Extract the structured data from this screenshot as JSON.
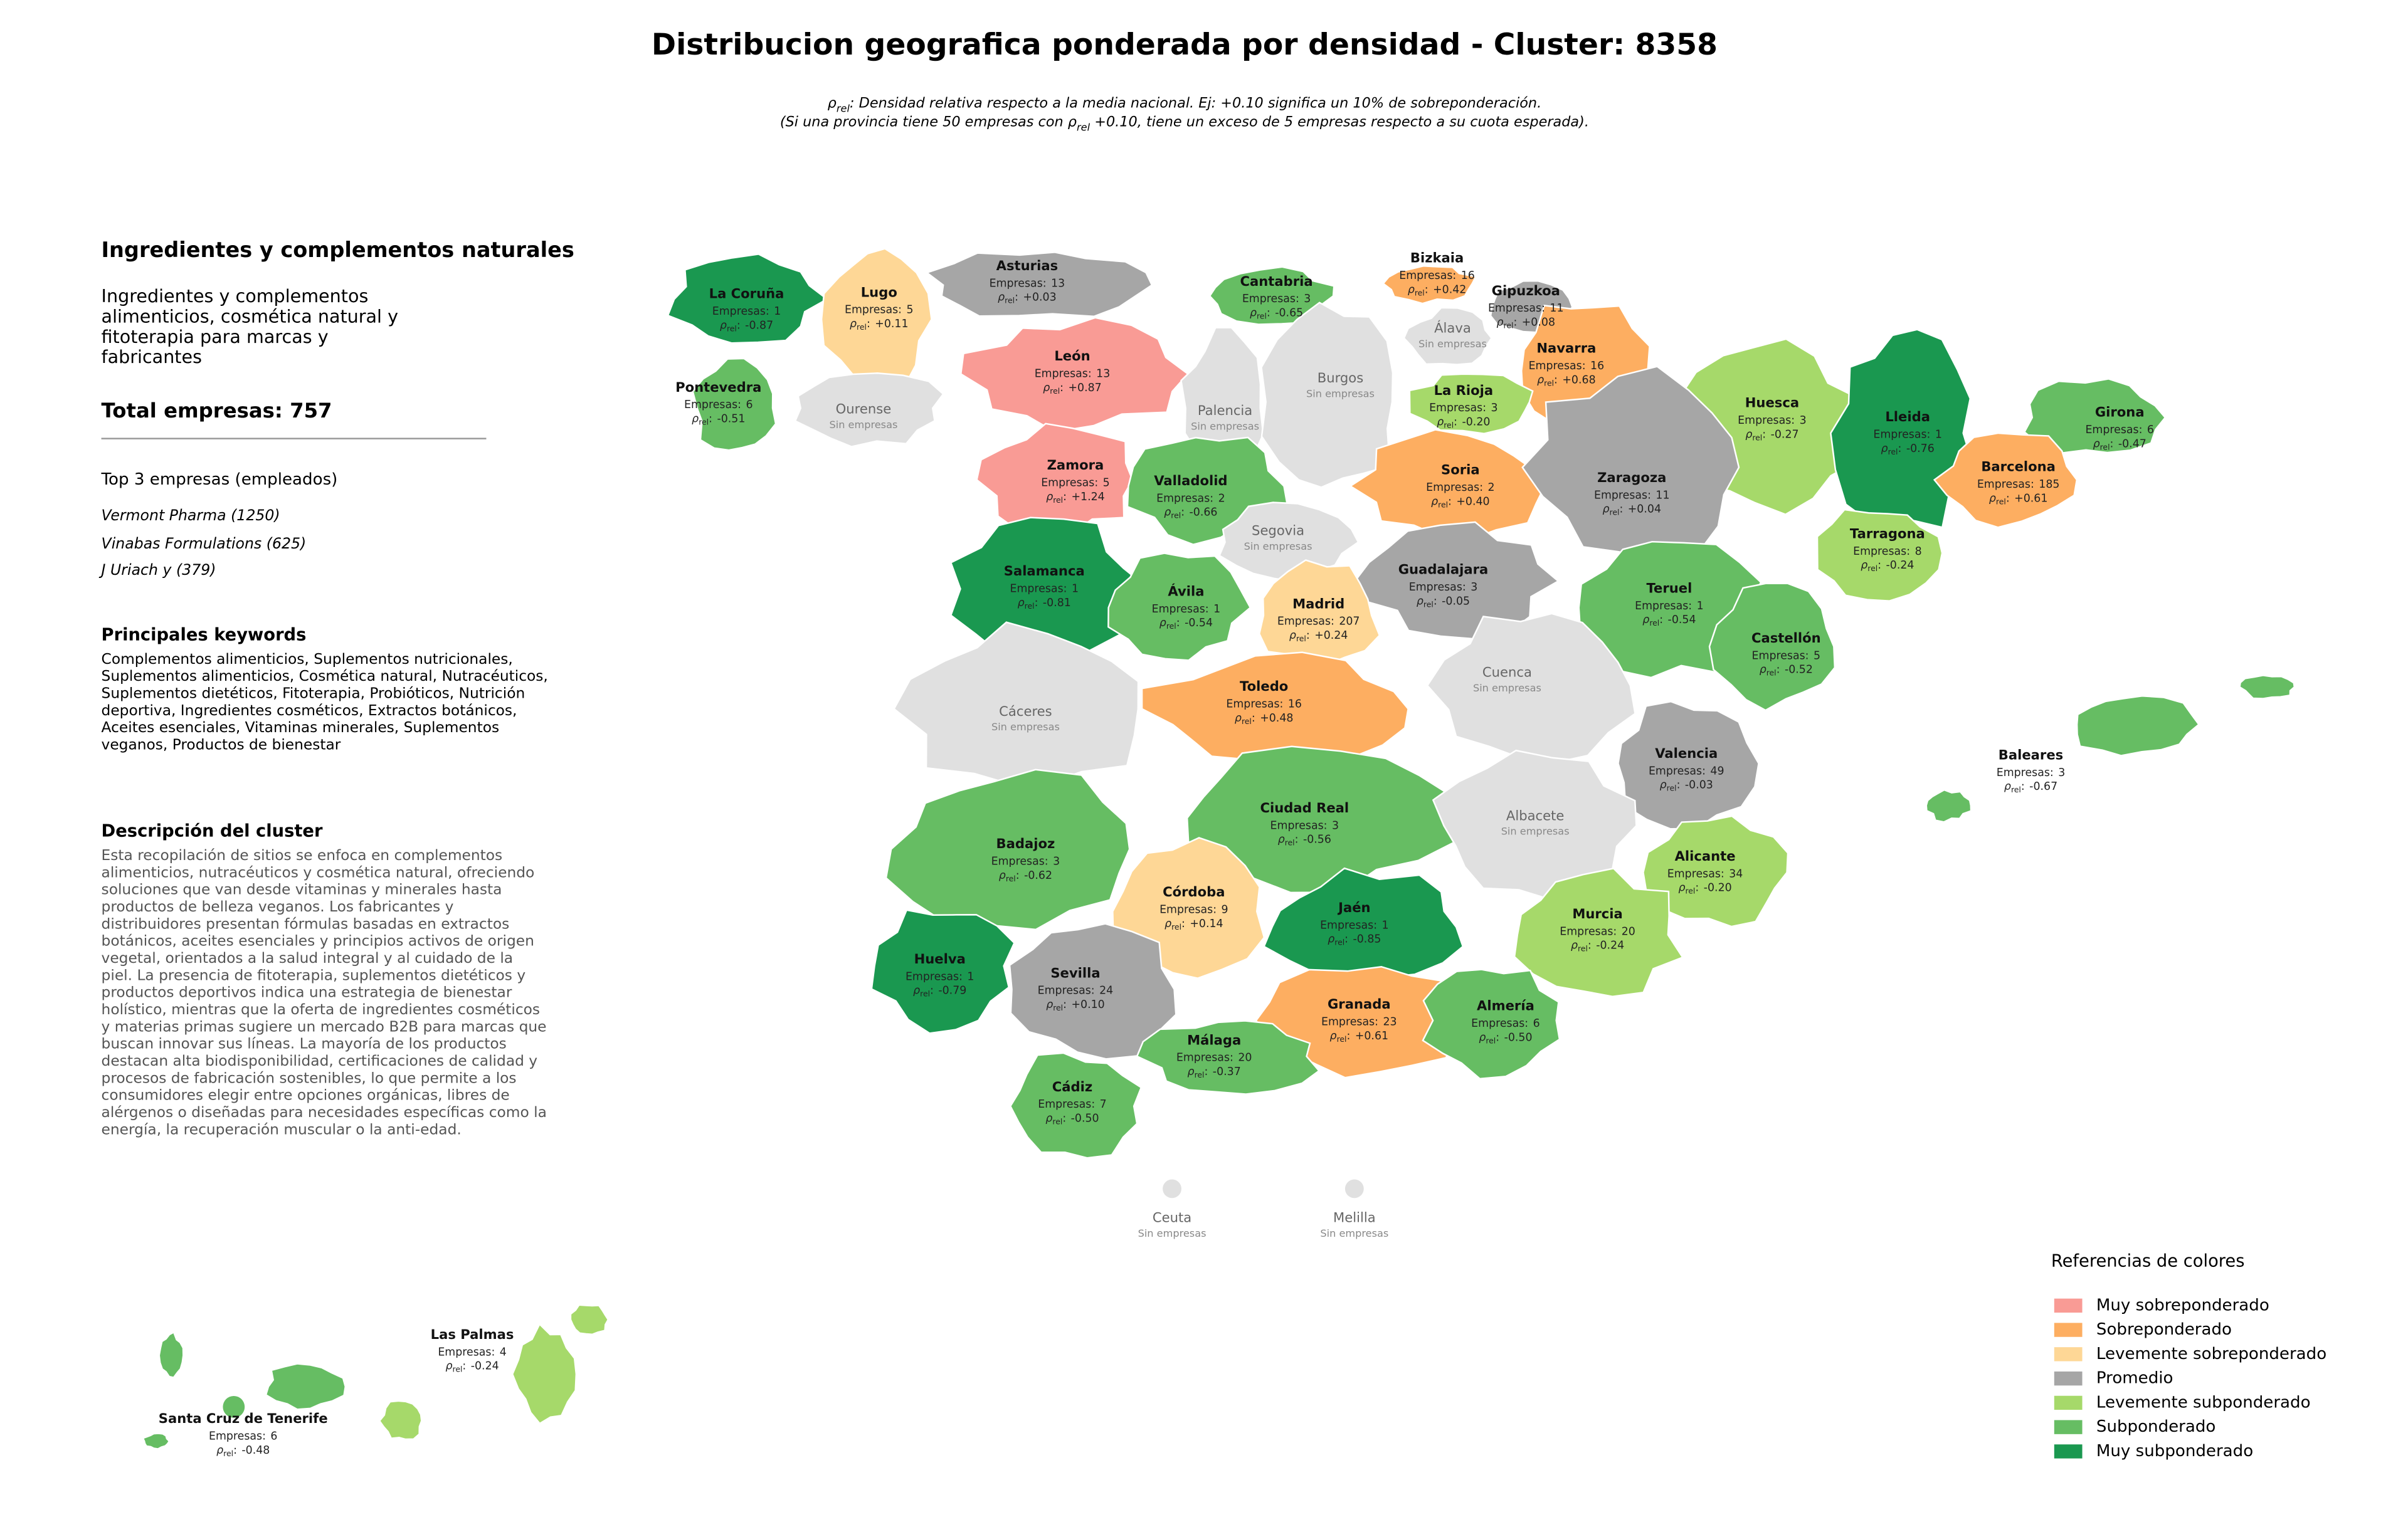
{
  "title": "Distribucion geografica ponderada por densidad - Cluster: 8358",
  "subtitle": [
    [
      {
        "text": "ρ"
      },
      {
        "sub": "rel"
      },
      {
        "text": ": Densidad relativa respecto a la media nacional. Ej: +0.10 significa un 10% de sobreponderación."
      }
    ],
    [
      {
        "text": "(Si una provincia tiene 50 empresas con ρ"
      },
      {
        "sub": "rel"
      },
      {
        "text": " +0.10, tiene un exceso de 5 empresas respecto a su cuota esperada)."
      }
    ]
  ],
  "panel": {
    "title": "Ingredientes y complementos naturales",
    "description": "Ingredientes y complementos alimenticios, cosmética natural y fitoterapia para marcas y fabricantes",
    "total_label": "Total empresas:",
    "total": 757,
    "top_heading": "Top 3 empresas (empleados)",
    "top": [
      "Vermont Pharma (1250)",
      "Vinabas Formulations (625)",
      "J Uriach y (379)"
    ],
    "keywords_heading": "Principales keywords",
    "keywords": "Complementos alimenticios, Suplementos nutricionales, Suplementos alimenticios, Cosmética natural, Nutracéuticos, Suplementos dietéticos, Fitoterapia, Probióticos, Nutrición deportiva, Ingredientes cosméticos, Extractos botánicos, Aceites esenciales, Vitaminas minerales, Suplementos veganos, Productos de bienestar",
    "cluster_heading": "Descripción del cluster",
    "cluster_text": "Esta recopilación de sitios se enfoca en complementos alimenticios, nutracéuticos y cosmética natural, ofreciendo soluciones que van desde vitaminas y minerales hasta productos de belleza veganos. Los fabricantes y distribuidores presentan fórmulas basadas en extractos botánicos, aceites esenciales y principios activos de origen vegetal, orientados a la salud integral y al cuidado de la piel. La presencia de fitoterapia, suplementos dietéticos y productos deportivos indica una estrategia de bienestar holístico, mientras que la oferta de ingredientes cosméticos y materias primas sugiere un mercado B2B para marcas que buscan innovar sus líneas. La mayoría de los productos destacan alta biodisponibilidad, certificaciones de calidad y procesos de fabricación sostenibles, lo que permite a los consumidores elegir entre opciones orgánicas, libres de alérgenos o diseñadas para necesidades específicas como la energía, la recuperación muscular o la anti-edad."
  },
  "map": {
    "count_label": "Empresas:",
    "rho_symbol": "ρ",
    "rho_subscript": "rel",
    "rho_colon": ":",
    "no_data_label": "Sin empresas",
    "no_data_color": "#e0e0e0",
    "provinces": [
      {
        "name": "La Coruña",
        "count": 1,
        "rho": -0.87,
        "category": 6
      },
      {
        "name": "Lugo",
        "count": 5,
        "rho": 0.11,
        "rho_label": "+0.11",
        "category": 2
      },
      {
        "name": "Asturias",
        "count": 13,
        "rho": 0.03,
        "rho_label": "+0.03",
        "category": 3
      },
      {
        "name": "Cantabria",
        "count": 3,
        "rho": -0.65,
        "category": 5
      },
      {
        "name": "Bizkaia",
        "count": 16,
        "rho": 0.42,
        "rho_label": "+0.42",
        "category": 1
      },
      {
        "name": "Gipuzkoa",
        "count": 11,
        "rho": 0.08,
        "rho_label": "+0.08",
        "category": 3
      },
      {
        "name": "Álava"
      },
      {
        "name": "Navarra",
        "count": 16,
        "rho": 0.68,
        "rho_label": "+0.68",
        "category": 1
      },
      {
        "name": "Pontevedra",
        "count": 6,
        "rho": -0.51,
        "category": 5
      },
      {
        "name": "Ourense"
      },
      {
        "name": "León",
        "count": 13,
        "rho": 0.87,
        "rho_label": "+0.87",
        "category": 0
      },
      {
        "name": "Palencia"
      },
      {
        "name": "Burgos"
      },
      {
        "name": "La Rioja",
        "count": 3,
        "rho": -0.2,
        "rho_label": "-0.20",
        "category": 4
      },
      {
        "name": "Huesca",
        "count": 3,
        "rho": -0.27,
        "category": 4
      },
      {
        "name": "Lleida",
        "count": 1,
        "rho": -0.76,
        "category": 6
      },
      {
        "name": "Girona",
        "count": 6,
        "rho": -0.47,
        "category": 5
      },
      {
        "name": "Zamora",
        "count": 5,
        "rho": 1.24,
        "rho_label": "+1.24",
        "category": 0
      },
      {
        "name": "Valladolid",
        "count": 2,
        "rho": -0.66,
        "category": 5
      },
      {
        "name": "Soria",
        "count": 2,
        "rho": 0.4,
        "rho_label": "+0.40",
        "category": 1
      },
      {
        "name": "Zaragoza",
        "count": 11,
        "rho": 0.04,
        "rho_label": "+0.04",
        "category": 3
      },
      {
        "name": "Barcelona",
        "count": 185,
        "rho": 0.61,
        "rho_label": "+0.61",
        "category": 1
      },
      {
        "name": "Segovia"
      },
      {
        "name": "Salamanca",
        "count": 1,
        "rho": -0.81,
        "category": 6
      },
      {
        "name": "Guadalajara",
        "count": 3,
        "rho": -0.05,
        "category": 3
      },
      {
        "name": "Tarragona",
        "count": 8,
        "rho": -0.24,
        "category": 4
      },
      {
        "name": "Ávila",
        "count": 1,
        "rho": -0.54,
        "category": 5
      },
      {
        "name": "Madrid",
        "count": 207,
        "rho": 0.24,
        "rho_label": "+0.24",
        "category": 2
      },
      {
        "name": "Teruel",
        "count": 1,
        "rho": -0.54,
        "category": 5
      },
      {
        "name": "Castellón",
        "count": 5,
        "rho": -0.52,
        "category": 5
      },
      {
        "name": "Cáceres"
      },
      {
        "name": "Toledo",
        "count": 16,
        "rho": 0.48,
        "rho_label": "+0.48",
        "category": 1
      },
      {
        "name": "Cuenca"
      },
      {
        "name": "Valencia",
        "count": 49,
        "rho": -0.03,
        "category": 3
      },
      {
        "name": "Baleares",
        "count": 3,
        "rho": -0.67,
        "category": 5
      },
      {
        "name": "Ciudad Real",
        "count": 3,
        "rho": -0.56,
        "category": 5
      },
      {
        "name": "Albacete"
      },
      {
        "name": "Badajoz",
        "count": 3,
        "rho": -0.62,
        "category": 5
      },
      {
        "name": "Alicante",
        "count": 34,
        "rho": -0.2,
        "rho_label": "-0.20",
        "category": 4
      },
      {
        "name": "Córdoba",
        "count": 9,
        "rho": 0.14,
        "rho_label": "+0.14",
        "category": 2
      },
      {
        "name": "Jaén",
        "count": 1,
        "rho": -0.85,
        "category": 6
      },
      {
        "name": "Murcia",
        "count": 20,
        "rho": -0.24,
        "category": 4
      },
      {
        "name": "Huelva",
        "count": 1,
        "rho": -0.79,
        "category": 6
      },
      {
        "name": "Sevilla",
        "count": 24,
        "rho": 0.1,
        "rho_label": "+0.10",
        "category": 3
      },
      {
        "name": "Granada",
        "count": 23,
        "rho": 0.61,
        "rho_label": "+0.61",
        "category": 1
      },
      {
        "name": "Almería",
        "count": 6,
        "rho": -0.5,
        "rho_label": "-0.50",
        "category": 5
      },
      {
        "name": "Málaga",
        "count": 20,
        "rho": -0.37,
        "category": 5
      },
      {
        "name": "Cádiz",
        "count": 7,
        "rho": -0.5,
        "rho_label": "-0.50",
        "category": 5
      },
      {
        "name": "Ceuta"
      },
      {
        "name": "Melilla"
      },
      {
        "name": "Las Palmas",
        "count": 4,
        "rho": -0.24,
        "category": 4
      },
      {
        "name": "Santa Cruz de Tenerife",
        "count": 6,
        "rho": -0.48,
        "category": 5
      }
    ]
  },
  "legend": {
    "title": "Referencias de colores",
    "items": [
      {
        "name": "Muy sobreponderado",
        "color": "#f99b95"
      },
      {
        "name": "Sobreponderado",
        "color": "#fdae61"
      },
      {
        "name": "Levemente sobreponderado",
        "color": "#fed796"
      },
      {
        "name": "Promedio",
        "color": "#a6a6a6"
      },
      {
        "name": "Levemente subponderado",
        "color": "#a6d96a"
      },
      {
        "name": "Subponderado",
        "color": "#66bd63"
      },
      {
        "name": "Muy subponderado",
        "color": "#1a9850"
      }
    ]
  }
}
